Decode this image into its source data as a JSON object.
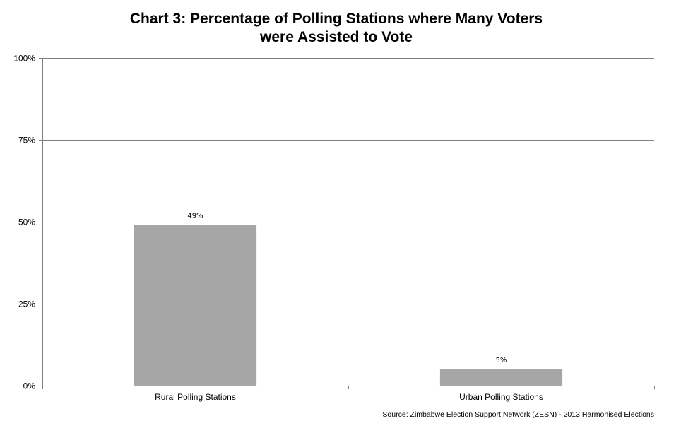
{
  "chart_data": {
    "type": "bar",
    "title_lines": [
      "Chart 3: Percentage of Polling Stations where Many Voters",
      "were Assisted to Vote"
    ],
    "categories": [
      "Rural Polling Stations",
      "Urban Polling Stations"
    ],
    "values": [
      49,
      5
    ],
    "data_labels": [
      "49%",
      "5%"
    ],
    "ylim": [
      0,
      100
    ],
    "yticks": [
      0,
      25,
      50,
      75,
      100
    ],
    "ytick_labels": [
      "0%",
      "25%",
      "50%",
      "75%",
      "100%"
    ],
    "grid": true,
    "legend": "none",
    "colors": {
      "bar": "#a6a6a6",
      "gridline": "#808080",
      "axis": "#808080"
    }
  },
  "source_note": "Source: Zimbabwe Election Support Network (ZESN) - 2013 Harmonised Elections"
}
